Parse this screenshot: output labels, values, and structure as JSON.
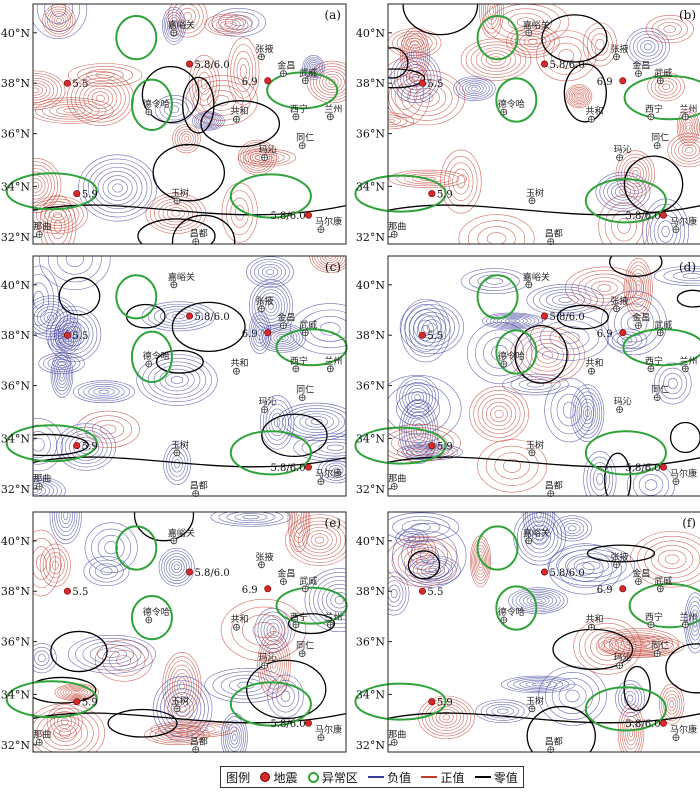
{
  "axis": {
    "lat_labels": [
      "40°N",
      "38°N",
      "36°N",
      "34°N",
      "32°N"
    ]
  },
  "panels": [
    {
      "label": "(a)",
      "style": "mixed"
    },
    {
      "label": "(b)",
      "style": "red"
    },
    {
      "label": "(c)",
      "style": "blue"
    },
    {
      "label": "(d)",
      "style": "blue"
    },
    {
      "label": "(e)",
      "style": "mixed"
    },
    {
      "label": "(f)",
      "style": "mixed"
    }
  ],
  "places": {
    "jiayuguan": "嘉峪关",
    "zhangye": "张掖",
    "jinchang": "金昌",
    "wuwei": "武威",
    "delingha": "德令哈",
    "xining": "西宁",
    "gonghe": "共和",
    "lanzhou": "兰州",
    "tongren": "同仁",
    "maqu": "玛沁",
    "yushu": "玉树",
    "maerkang": "马尔康",
    "naqu": "那曲",
    "changdu": "昌都"
  },
  "events": {
    "e55": "5.5",
    "e5860": "5.8/6.0",
    "e69": "6.9",
    "e59": "5.9",
    "e5860s": "5.8/6.0"
  },
  "legend": {
    "title": "图例",
    "earthquake": "地震",
    "anomaly": "异常区",
    "negative": "负值",
    "positive": "正值",
    "zero": "零值",
    "colors": {
      "negative": "#3a3a9c",
      "positive": "#c0392b",
      "zero": "#000000",
      "anomaly": "#2fa33a",
      "quake": "#d42a2a"
    }
  }
}
